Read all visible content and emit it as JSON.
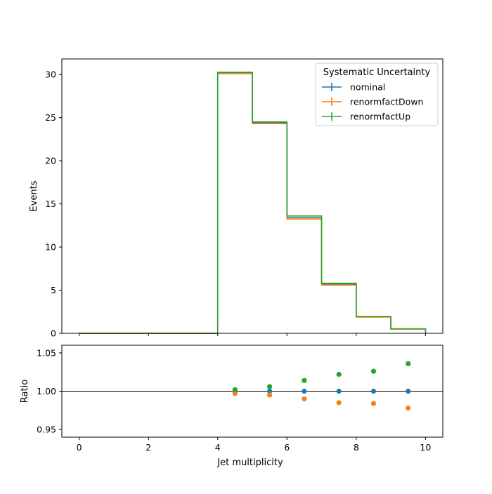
{
  "chart_data": [
    {
      "type": "line",
      "drawstyle": "step",
      "ylabel": "Events",
      "xlim": [
        -0.5,
        10.5
      ],
      "ylim": [
        0,
        31.8
      ],
      "x_ticks": [
        0,
        2,
        4,
        6,
        8,
        10
      ],
      "y_ticks": [
        0,
        5,
        10,
        15,
        20,
        25,
        30
      ],
      "bin_edges": [
        0,
        1,
        2,
        3,
        4,
        5,
        6,
        7,
        8,
        9,
        10
      ],
      "grid": false,
      "legend": {
        "title": "Systematic Uncertainty",
        "position": "top-right"
      },
      "series": [
        {
          "name": "nominal",
          "color": "#1f77b4",
          "values": [
            0,
            0,
            0,
            0,
            30.2,
            24.4,
            13.4,
            5.7,
            1.9,
            0.5
          ]
        },
        {
          "name": "renormfactDown",
          "color": "#ff7f0e",
          "values": [
            0,
            0,
            0,
            0,
            30.1,
            24.3,
            13.25,
            5.6,
            1.87,
            0.49
          ]
        },
        {
          "name": "renormfactUp",
          "color": "#2ca02c",
          "values": [
            0,
            0,
            0,
            0,
            30.25,
            24.5,
            13.6,
            5.8,
            1.95,
            0.52
          ]
        }
      ]
    },
    {
      "type": "scatter",
      "xlabel": "Jet multiplicity",
      "ylabel": "Ratio",
      "xlim": [
        -0.5,
        10.5
      ],
      "ylim": [
        0.94,
        1.06
      ],
      "x_ticks": [
        0,
        2,
        4,
        6,
        8,
        10
      ],
      "y_ticks": [
        "0.95",
        "1.00",
        "1.05"
      ],
      "reference_line": 1.0,
      "x": [
        4.5,
        5.5,
        6.5,
        7.5,
        8.5,
        9.5
      ],
      "series": [
        {
          "name": "nominal",
          "color": "#1f77b4",
          "values": [
            1.0,
            1.0,
            1.0,
            1.0,
            1.0,
            1.0
          ]
        },
        {
          "name": "renormfactDown",
          "color": "#ff7f0e",
          "values": [
            0.997,
            0.995,
            0.99,
            0.985,
            0.984,
            0.978
          ]
        },
        {
          "name": "renormfactUp",
          "color": "#2ca02c",
          "values": [
            1.002,
            1.006,
            1.014,
            1.022,
            1.026,
            1.036
          ]
        }
      ]
    }
  ]
}
